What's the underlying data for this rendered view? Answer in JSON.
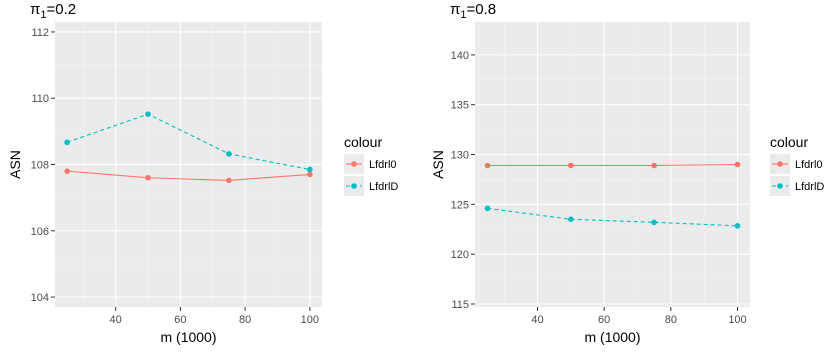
{
  "colors": {
    "lfdrl0": "#F8766D",
    "lfdrlD": "#00BFC4"
  },
  "chart_data": [
    {
      "type": "line",
      "title": "π₁=0.2",
      "title_base": "π",
      "title_sub": "1",
      "title_rest": "=0.2",
      "xlabel": "m (1000)",
      "ylabel": "ASN",
      "xlim": [
        21.25,
        103.75
      ],
      "ylim": [
        103.7,
        112.3
      ],
      "xticks": [
        40,
        60,
        80,
        100
      ],
      "yticks": [
        104,
        106,
        108,
        110,
        112
      ],
      "x": [
        25,
        50,
        75,
        100
      ],
      "series": [
        {
          "name": "Lfdrl0",
          "values": [
            107.8,
            107.6,
            107.52,
            107.7
          ],
          "linetype": "solid",
          "color": "#F8766D"
        },
        {
          "name": "LfdrlD",
          "values": [
            108.67,
            109.52,
            108.32,
            107.85
          ],
          "linetype": "dashed",
          "color": "#00BFC4"
        }
      ],
      "legend": {
        "title": "colour",
        "position": "right"
      },
      "grid": true
    },
    {
      "type": "line",
      "title": "π₁=0.8",
      "title_base": "π",
      "title_sub": "1",
      "title_rest": "=0.8",
      "xlabel": "m (1000)",
      "ylabel": "ASN",
      "xlim": [
        21.25,
        103.75
      ],
      "ylim": [
        114.7,
        143.3
      ],
      "xticks": [
        40,
        60,
        80,
        100
      ],
      "yticks": [
        115,
        120,
        125,
        130,
        135,
        140
      ],
      "x": [
        25,
        50,
        75,
        100
      ],
      "series": [
        {
          "name": "Lfdrl0",
          "values": [
            128.9,
            128.9,
            128.9,
            129.0
          ],
          "linetype": "solid",
          "color": "#F8766D"
        },
        {
          "name": "LfdrlD",
          "values": [
            124.6,
            123.5,
            123.2,
            122.85
          ],
          "linetype": "dashed",
          "color": "#00BFC4"
        }
      ],
      "legend": {
        "title": "colour",
        "position": "right"
      },
      "grid": true
    }
  ]
}
